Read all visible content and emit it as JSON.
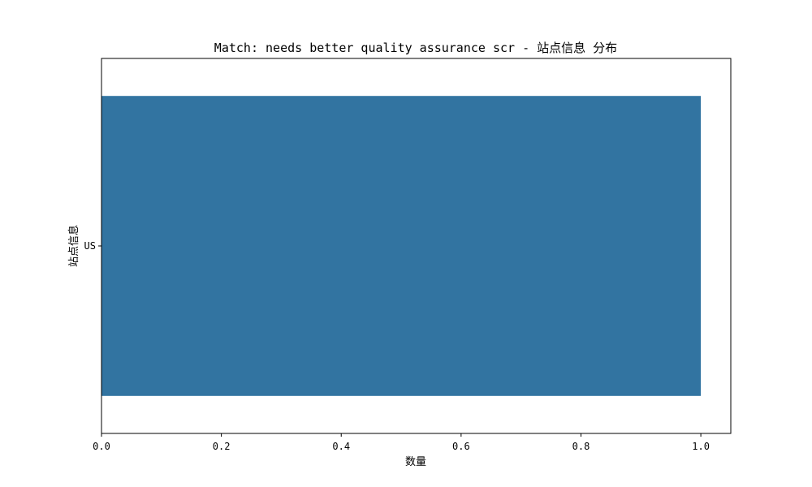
{
  "chart_data": {
    "type": "bar",
    "orientation": "horizontal",
    "title": "Match: needs better quality assurance scr - 站点信息 分布",
    "xlabel": "数量",
    "ylabel": "站点信息",
    "categories": [
      "US"
    ],
    "values": [
      1.0
    ],
    "xlim": [
      0,
      1.05
    ],
    "xticks": [
      "0.0",
      "0.2",
      "0.4",
      "0.6",
      "0.8",
      "1.0"
    ],
    "grid": false,
    "legend": "none",
    "bar_color": "#3274a1"
  }
}
